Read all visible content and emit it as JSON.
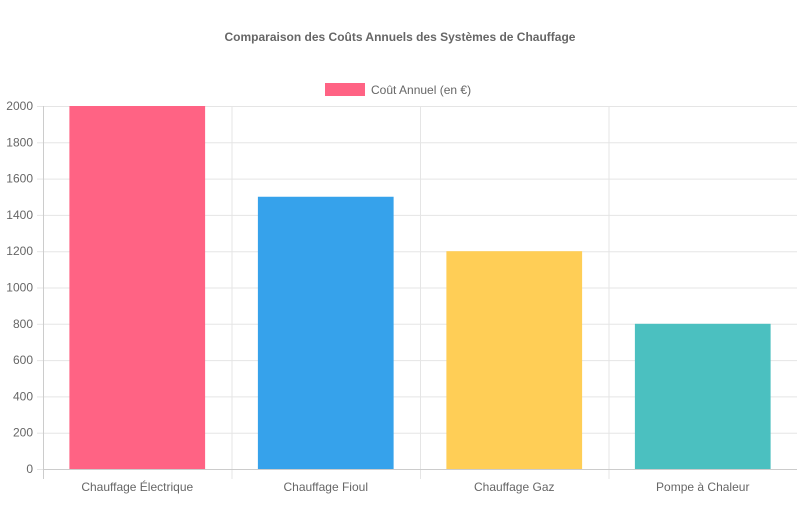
{
  "chart_data": {
    "type": "bar",
    "title": "Comparaison des Coûts Annuels des Systèmes de Chauffage",
    "categories": [
      "Chauffage Électrique",
      "Chauffage Fioul",
      "Chauffage Gaz",
      "Pompe à Chaleur"
    ],
    "series": [
      {
        "name": "Coût Annuel (en €)",
        "values": [
          2000,
          1500,
          1200,
          800
        ],
        "colors": [
          "#ff6384",
          "#36a2eb",
          "#ffce56",
          "#4bc0c0"
        ]
      }
    ],
    "legend": {
      "position": "top",
      "swatch_color": "#ff6384"
    },
    "ylim": [
      0,
      2000
    ],
    "yticks": [
      0,
      200,
      400,
      600,
      800,
      1000,
      1200,
      1400,
      1600,
      1800,
      2000
    ],
    "grid": true,
    "xlabel": "",
    "ylabel": ""
  }
}
